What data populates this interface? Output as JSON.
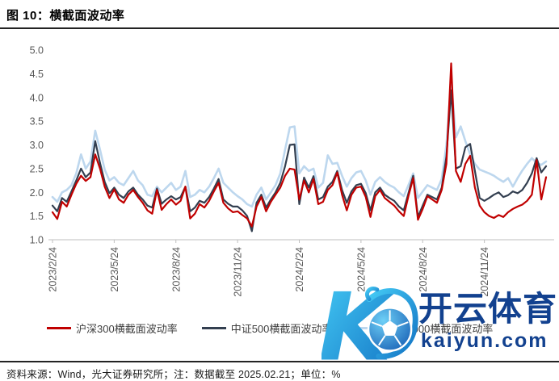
{
  "figure": {
    "title": "图 10：横截面波动率",
    "source_note": "资料来源：Wind，光大证券研究所；注：数据截至 2025.02.21；单位：%"
  },
  "watermark": {
    "brand": "开云体育",
    "domain": "kaiyun.com",
    "logo": "kaiyun-k-soccer-ball-logo",
    "text_color": "#12418F",
    "logo_gradient": [
      "#3FC9F4",
      "#1273C4"
    ]
  },
  "chart_data": {
    "type": "line",
    "title": "横截面波动率",
    "unit": "%",
    "x_frequency": "weekly",
    "x_start": "2023/2/24",
    "x_end": "2025/2/21",
    "x_tick_labels": [
      "2023/2/24",
      "2023/5/24",
      "2023/8/24",
      "2023/11/24",
      "2024/2/24",
      "2024/5/24",
      "2024/8/24",
      "2024/11/24"
    ],
    "x_tick_indices": [
      0,
      13,
      26,
      39,
      52,
      65,
      78,
      91
    ],
    "ylim": [
      1.0,
      5.0
    ],
    "y_ticks": [
      1.0,
      1.5,
      2.0,
      2.5,
      3.0,
      3.5,
      4.0,
      4.5,
      5.0
    ],
    "grid": false,
    "legend_position": "bottom",
    "axis_color": "#BFBFBF",
    "tick_label_color": "#595959",
    "series": [
      {
        "name": "沪深300横截面波动率",
        "color": "#C00000",
        "values": [
          1.58,
          1.44,
          1.8,
          1.7,
          1.95,
          2.18,
          2.35,
          2.24,
          2.32,
          2.8,
          2.5,
          2.12,
          1.88,
          2.06,
          1.85,
          1.78,
          1.95,
          2.05,
          1.9,
          1.78,
          1.62,
          1.55,
          2.05,
          1.63,
          1.75,
          1.85,
          1.74,
          1.82,
          2.12,
          1.45,
          1.55,
          1.75,
          1.68,
          1.82,
          2.02,
          2.2,
          1.78,
          1.66,
          1.58,
          1.6,
          1.52,
          1.45,
          1.28,
          1.7,
          1.9,
          1.6,
          1.8,
          1.95,
          2.1,
          2.35,
          2.5,
          2.48,
          1.85,
          2.25,
          2.0,
          2.28,
          1.75,
          1.8,
          2.05,
          2.15,
          2.42,
          1.95,
          1.62,
          1.95,
          2.1,
          2.12,
          1.9,
          1.48,
          1.92,
          2.05,
          1.88,
          1.8,
          1.72,
          1.6,
          1.5,
          1.92,
          2.3,
          1.42,
          1.65,
          1.92,
          1.85,
          1.78,
          2.05,
          2.6,
          4.72,
          2.45,
          2.22,
          2.6,
          2.77,
          2.1,
          1.72,
          1.58,
          1.5,
          1.46,
          1.52,
          1.48,
          1.58,
          1.65,
          1.7,
          1.74,
          1.82,
          1.95,
          2.68,
          1.85,
          2.32
        ]
      },
      {
        "name": "中证500横截面波动率",
        "color": "#333F50",
        "values": [
          1.72,
          1.6,
          1.88,
          1.8,
          2.02,
          2.25,
          2.5,
          2.32,
          2.42,
          3.08,
          2.62,
          2.22,
          1.98,
          2.1,
          1.95,
          1.88,
          2.02,
          2.1,
          1.95,
          1.85,
          1.72,
          1.68,
          2.08,
          1.76,
          1.85,
          1.92,
          1.85,
          1.9,
          2.12,
          1.6,
          1.68,
          1.82,
          1.78,
          1.9,
          2.08,
          2.28,
          1.85,
          1.76,
          1.7,
          1.7,
          1.62,
          1.5,
          1.18,
          1.78,
          1.95,
          1.68,
          1.85,
          2.0,
          2.2,
          2.55,
          3.0,
          3.01,
          1.75,
          2.31,
          2.1,
          2.34,
          1.85,
          1.9,
          2.12,
          2.22,
          2.45,
          2.05,
          1.78,
          2.02,
          2.15,
          2.18,
          1.98,
          1.62,
          2.0,
          2.1,
          1.95,
          1.88,
          1.82,
          1.7,
          1.62,
          1.98,
          2.35,
          1.48,
          1.72,
          1.95,
          1.9,
          1.85,
          2.1,
          2.75,
          4.15,
          2.5,
          2.55,
          2.95,
          3.02,
          2.45,
          1.88,
          1.82,
          1.88,
          1.95,
          2.0,
          1.9,
          1.94,
          2.02,
          1.98,
          2.05,
          2.2,
          2.4,
          2.72,
          2.42,
          2.55
        ]
      },
      {
        "name": "中证1000横截面波动率",
        "color": "#BDD7EE",
        "values": [
          1.9,
          1.8,
          2.0,
          2.05,
          2.15,
          2.4,
          2.8,
          2.5,
          2.65,
          3.3,
          2.9,
          2.48,
          2.25,
          2.32,
          2.2,
          2.15,
          2.3,
          2.45,
          2.25,
          2.15,
          1.95,
          1.92,
          2.12,
          2.0,
          2.1,
          2.2,
          2.05,
          2.12,
          2.45,
          1.9,
          1.95,
          2.05,
          2.0,
          2.12,
          2.3,
          2.5,
          2.2,
          2.1,
          2.0,
          1.92,
          1.85,
          1.75,
          1.7,
          1.95,
          2.1,
          1.85,
          2.0,
          2.15,
          2.4,
          2.9,
          3.37,
          3.39,
          2.4,
          2.55,
          2.45,
          2.5,
          2.1,
          2.2,
          2.78,
          2.6,
          2.62,
          2.35,
          2.12,
          2.3,
          2.42,
          2.45,
          2.25,
          1.95,
          2.22,
          2.32,
          2.22,
          2.15,
          2.1,
          2.0,
          1.92,
          2.15,
          2.4,
          1.88,
          2.02,
          2.15,
          2.1,
          2.05,
          2.28,
          3.0,
          4.35,
          3.16,
          3.39,
          3.08,
          2.8,
          2.6,
          2.48,
          2.44,
          2.4,
          2.35,
          2.28,
          2.22,
          2.3,
          2.12,
          2.3,
          2.46,
          2.6,
          2.72,
          2.62,
          2.58,
          2.65
        ]
      }
    ]
  }
}
